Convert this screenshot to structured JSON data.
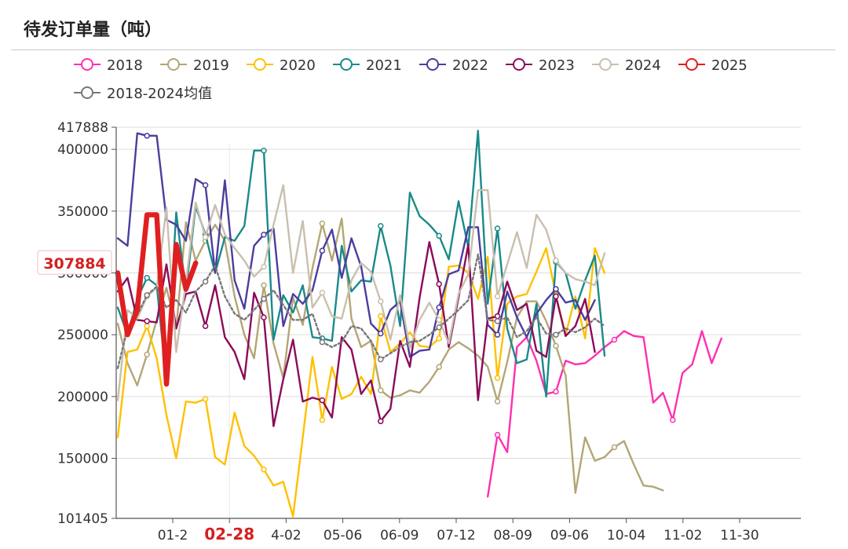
{
  "page_title": "待发订单量（吨）",
  "chart_data": {
    "type": "line",
    "title": "待发订单量（吨）",
    "ylim": [
      101405,
      417888
    ],
    "yticks": [
      101405,
      150000,
      200000,
      250000,
      300000,
      350000,
      400000,
      417888
    ],
    "yticks_labels": [
      "101405",
      "150000",
      "200000",
      "250000",
      "300000",
      "350000",
      "400000",
      "417888"
    ],
    "xticks": [
      "01-2",
      "02-28",
      "4-02",
      "05-06",
      "06-09",
      "07-12",
      "08-09",
      "09-06",
      "10-04",
      "11-02",
      "11-30"
    ],
    "x_highlight": "02-28",
    "value_marker": "307884",
    "series": [
      {
        "name": "2018",
        "color": "#ff2fb0",
        "width": 2.4,
        "dash": "",
        "values": [
          null,
          null,
          null,
          null,
          null,
          null,
          null,
          null,
          null,
          null,
          null,
          null,
          null,
          null,
          null,
          null,
          null,
          null,
          null,
          null,
          null,
          null,
          null,
          null,
          null,
          null,
          null,
          null,
          null,
          null,
          null,
          null,
          null,
          null,
          null,
          null,
          null,
          null,
          119000,
          169000,
          155000,
          240000,
          248000,
          229000,
          202000,
          204000,
          229000,
          226000,
          227000,
          233000,
          240000,
          246000,
          253000,
          249000,
          248000,
          195000,
          203000,
          181000,
          219000,
          226000,
          253000,
          227000,
          247000
        ]
      },
      {
        "name": "2019",
        "color": "#b3a676",
        "width": 2.4,
        "dash": "",
        "values": [
          259000,
          227000,
          209000,
          234000,
          262000,
          288000,
          255000,
          341000,
          310000,
          326000,
          339000,
          326000,
          281000,
          250000,
          231000,
          290000,
          243000,
          215000,
          280000,
          258000,
          304000,
          340000,
          310000,
          344000,
          263000,
          240000,
          245000,
          205000,
          199000,
          201000,
          205000,
          203000,
          212000,
          224000,
          238000,
          244000,
          239000,
          233000,
          224000,
          196000,
          228000,
          264000,
          277000,
          277000,
          261000,
          241000,
          217000,
          122000,
          167000,
          148000,
          151000,
          159000,
          164000,
          145000,
          128000,
          127000,
          124000
        ]
      },
      {
        "name": "2020",
        "color": "#ffc000",
        "width": 2.4,
        "dash": "",
        "values": [
          167000,
          236000,
          238000,
          257000,
          231000,
          185000,
          150000,
          196000,
          195000,
          198000,
          151000,
          145000,
          187000,
          160000,
          152000,
          141000,
          128000,
          131000,
          103000,
          167000,
          232000,
          181000,
          224000,
          198000,
          202000,
          216000,
          202000,
          265000,
          236000,
          243000,
          252000,
          241000,
          240000,
          247000,
          305000,
          306000,
          300000,
          279000,
          313000,
          215000,
          275000,
          281000,
          283000,
          301000,
          320000,
          282000,
          250000,
          281000,
          247000,
          320000,
          300000
        ]
      },
      {
        "name": "2021",
        "color": "#1a8a8a",
        "width": 2.4,
        "dash": "",
        "values": [
          272000,
          250000,
          279000,
          296000,
          290000,
          212000,
          349000,
          285000,
          354000,
          331000,
          300000,
          329000,
          326000,
          338000,
          399000,
          399000,
          246000,
          282000,
          268000,
          290000,
          248000,
          247000,
          245000,
          322000,
          285000,
          294000,
          293000,
          338000,
          306000,
          257000,
          365000,
          346000,
          339000,
          330000,
          311000,
          358000,
          321000,
          415000,
          275000,
          336000,
          255000,
          227000,
          230000,
          275000,
          200000,
          309000,
          300000,
          271000,
          294000,
          314000,
          233000
        ]
      },
      {
        "name": "2022",
        "color": "#4b3d9e",
        "width": 2.4,
        "dash": "",
        "values": [
          328000,
          322000,
          413000,
          411000,
          411000,
          343000,
          339000,
          326000,
          376000,
          371000,
          300000,
          375000,
          294000,
          271000,
          322000,
          331000,
          336000,
          257000,
          283000,
          275000,
          286000,
          318000,
          335000,
          296000,
          328000,
          305000,
          259000,
          251000,
          270000,
          277000,
          232000,
          237000,
          238000,
          272000,
          299000,
          302000,
          337000,
          337000,
          258000,
          250000,
          285000,
          264000,
          248000,
          267000,
          278000,
          287000,
          276000,
          278000,
          262000,
          278000
        ]
      },
      {
        "name": "2023",
        "color": "#8b0b5a",
        "width": 2.4,
        "dash": "",
        "values": [
          285000,
          296000,
          262000,
          261000,
          260000,
          307000,
          255000,
          283000,
          285000,
          257000,
          290000,
          248000,
          236000,
          214000,
          284000,
          264000,
          176000,
          214000,
          246000,
          196000,
          199000,
          197000,
          183000,
          248000,
          238000,
          202000,
          213000,
          180000,
          190000,
          245000,
          224000,
          280000,
          325000,
          291000,
          240000,
          280000,
          323000,
          197000,
          263000,
          265000,
          293000,
          270000,
          275000,
          237000,
          232000,
          281000,
          249000,
          257000,
          279000,
          236000
        ]
      },
      {
        "name": "2024",
        "color": "#c9bfae",
        "width": 2.4,
        "dash": "",
        "values": [
          197000,
          270000,
          263000,
          281000,
          288000,
          353000,
          236000,
          292000,
          357000,
          329000,
          355000,
          331000,
          320000,
          310000,
          297000,
          305000,
          339000,
          371000,
          300000,
          342000,
          272000,
          284000,
          265000,
          263000,
          294000,
          308000,
          301000,
          277000,
          246000,
          282000,
          239000,
          262000,
          276000,
          262000,
          243000,
          283000,
          299000,
          367000,
          367000,
          281000,
          307000,
          333000,
          304000,
          347000,
          335000,
          310000,
          300000,
          295000,
          293000,
          290000,
          316000
        ]
      },
      {
        "name": "2025",
        "color": "#e02020",
        "width": 6.5,
        "dash": "",
        "values": [
          300000,
          250000,
          270000,
          347000,
          347000,
          210000,
          323000,
          287000,
          308000
        ]
      },
      {
        "name": "2018-2024均值",
        "color": "#777777",
        "width": 2.4,
        "dash": "3 3",
        "values": [
          223000,
          255000,
          266000,
          282000,
          289000,
          272000,
          278000,
          268000,
          285000,
          293000,
          306000,
          281000,
          267000,
          262000,
          270000,
          279000,
          286000,
          274000,
          262000,
          262000,
          267000,
          244000,
          240000,
          244000,
          257000,
          255000,
          245000,
          230000,
          235000,
          240000,
          244000,
          245000,
          250000,
          256000,
          263000,
          270000,
          278000,
          315000,
          262000,
          261000,
          264000,
          248000,
          253000,
          264000,
          251000,
          250000,
          255000,
          252000,
          256000,
          263000,
          257000
        ]
      }
    ]
  }
}
